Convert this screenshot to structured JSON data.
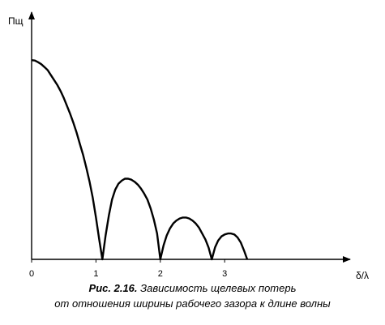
{
  "chart_data": {
    "type": "line",
    "ylabel": "Пщ",
    "xlabel": "δ/λ",
    "x_ticks": [
      0,
      1,
      2,
      3
    ],
    "xlim": [
      0,
      4.95
    ],
    "ylim": [
      0,
      1.18
    ],
    "grid": false,
    "legend": "none",
    "series": [
      {
        "points": [
          [
            0,
            1.0
          ],
          [
            0.05,
            0.998
          ],
          [
            0.1,
            0.99
          ],
          [
            0.15,
            0.98
          ],
          [
            0.2,
            0.965
          ],
          [
            0.25,
            0.95
          ],
          [
            0.3,
            0.925
          ],
          [
            0.35,
            0.9
          ],
          [
            0.4,
            0.875
          ],
          [
            0.45,
            0.845
          ],
          [
            0.5,
            0.81
          ],
          [
            0.55,
            0.77
          ],
          [
            0.6,
            0.73
          ],
          [
            0.65,
            0.685
          ],
          [
            0.7,
            0.635
          ],
          [
            0.75,
            0.58
          ],
          [
            0.8,
            0.525
          ],
          [
            0.85,
            0.46
          ],
          [
            0.9,
            0.39
          ],
          [
            0.95,
            0.31
          ],
          [
            1.0,
            0.21
          ],
          [
            1.05,
            0.1
          ],
          [
            1.1,
            0.0
          ],
          [
            1.15,
            0.12
          ],
          [
            1.2,
            0.22
          ],
          [
            1.25,
            0.3
          ],
          [
            1.3,
            0.35
          ],
          [
            1.35,
            0.38
          ],
          [
            1.4,
            0.395
          ],
          [
            1.45,
            0.405
          ],
          [
            1.5,
            0.405
          ],
          [
            1.55,
            0.4
          ],
          [
            1.6,
            0.39
          ],
          [
            1.65,
            0.375
          ],
          [
            1.7,
            0.355
          ],
          [
            1.75,
            0.33
          ],
          [
            1.8,
            0.3
          ],
          [
            1.85,
            0.255
          ],
          [
            1.9,
            0.2
          ],
          [
            1.95,
            0.13
          ],
          [
            2.0,
            0.0
          ],
          [
            2.05,
            0.07
          ],
          [
            2.1,
            0.12
          ],
          [
            2.15,
            0.155
          ],
          [
            2.2,
            0.18
          ],
          [
            2.25,
            0.195
          ],
          [
            2.3,
            0.205
          ],
          [
            2.35,
            0.21
          ],
          [
            2.4,
            0.21
          ],
          [
            2.45,
            0.205
          ],
          [
            2.5,
            0.195
          ],
          [
            2.55,
            0.18
          ],
          [
            2.6,
            0.16
          ],
          [
            2.65,
            0.13
          ],
          [
            2.7,
            0.1
          ],
          [
            2.75,
            0.06
          ],
          [
            2.8,
            0.0
          ],
          [
            2.85,
            0.06
          ],
          [
            2.9,
            0.095
          ],
          [
            2.95,
            0.115
          ],
          [
            3.0,
            0.125
          ],
          [
            3.05,
            0.13
          ],
          [
            3.1,
            0.13
          ],
          [
            3.15,
            0.125
          ],
          [
            3.2,
            0.11
          ],
          [
            3.25,
            0.085
          ],
          [
            3.3,
            0.045
          ],
          [
            3.35,
            0.0
          ]
        ]
      }
    ]
  },
  "caption": {
    "figure_label": "Рис. 2.16.",
    "line1": "Зависимость щелевых потерь",
    "line2": "от отношения ширины рабочего зазора к длине волны"
  }
}
